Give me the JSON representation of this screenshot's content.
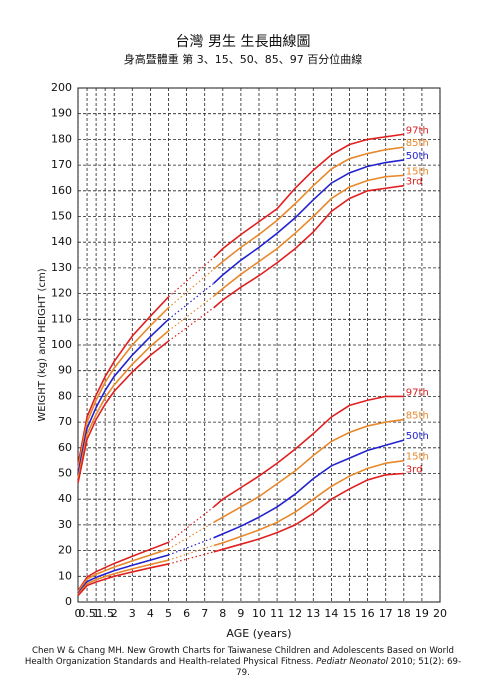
{
  "chart_data": {
    "type": "line",
    "title": "台灣 男生 生長曲線圖",
    "subtitle": "身高暨體重 第 3、15、50、85、97 百分位曲線",
    "x_label": "AGE (years)",
    "y_label": "WEIGHT (kg) and HEIGHT (cm)",
    "x": [
      0,
      0.5,
      1,
      1.5,
      2,
      3,
      4,
      5,
      7.5,
      8,
      9,
      10,
      11,
      12,
      13,
      14,
      15,
      16,
      17,
      18
    ],
    "dotted_between": [
      5,
      7.5
    ],
    "xlim": [
      0,
      20
    ],
    "xticks": [
      0,
      0.5,
      1,
      1.5,
      2,
      3,
      4,
      5,
      6,
      7,
      8,
      9,
      10,
      11,
      12,
      13,
      14,
      15,
      16,
      17,
      18,
      19,
      20
    ],
    "ylim": [
      0,
      200
    ],
    "yticks": [
      0,
      10,
      20,
      30,
      40,
      50,
      60,
      70,
      80,
      90,
      100,
      110,
      120,
      130,
      140,
      150,
      160,
      170,
      180,
      190,
      200
    ],
    "grid": true,
    "series": [
      {
        "name": "97th",
        "color": "#e02020",
        "values": [
          53.4,
          72,
          80.5,
          87.7,
          93.6,
          103.5,
          111.2,
          118.7,
          134,
          137.5,
          143,
          148,
          153,
          161,
          168,
          174,
          178,
          180,
          181,
          182
        ]
      },
      {
        "name": "85th",
        "color": "#e8882a",
        "values": [
          51.9,
          70,
          78.5,
          85.5,
          91,
          100,
          107.5,
          114.5,
          129.5,
          132.5,
          138,
          143,
          148.5,
          155,
          162,
          168.5,
          172.5,
          174.5,
          176,
          177
        ]
      },
      {
        "name": "50th",
        "color": "#2222d0",
        "values": [
          49.9,
          67.6,
          75.7,
          82.3,
          87.8,
          96.1,
          103.3,
          110,
          124,
          127.3,
          133,
          138,
          143.5,
          149.5,
          156.5,
          163,
          167,
          169.5,
          171,
          172
        ]
      },
      {
        "name": "15th",
        "color": "#e8882a",
        "values": [
          48,
          65.3,
          73,
          79.5,
          84.5,
          92.5,
          99.5,
          105.5,
          119,
          122,
          127.5,
          132.5,
          137.5,
          143.5,
          150,
          157,
          161.5,
          164,
          165.5,
          166
        ]
      },
      {
        "name": "3rd",
        "color": "#e02020",
        "values": [
          46.3,
          63.3,
          71,
          77,
          82,
          89.5,
          96,
          101.5,
          114.5,
          117.5,
          122.5,
          127,
          132,
          137.5,
          144,
          152,
          157,
          160,
          161,
          162
        ]
      },
      {
        "name": "97th",
        "color": "#e02020",
        "values": [
          4.3,
          9.7,
          11.8,
          13.4,
          15,
          17.8,
          20.5,
          23.2,
          37,
          40,
          44.5,
          49,
          54,
          59.5,
          65.5,
          72,
          76.5,
          78.5,
          80,
          80
        ]
      },
      {
        "name": "85th",
        "color": "#e8882a",
        "values": [
          3.9,
          8.9,
          10.8,
          12.2,
          13.6,
          16,
          18.3,
          20.6,
          31,
          33,
          37,
          41,
          46,
          51,
          57,
          62.5,
          66,
          68.5,
          70,
          71
        ]
      },
      {
        "name": "50th",
        "color": "#2222d0",
        "values": [
          3.3,
          7.9,
          9.6,
          10.9,
          12.2,
          14.3,
          16.3,
          18.3,
          25,
          26.5,
          29.5,
          33,
          37,
          42,
          48,
          53,
          56,
          59,
          61,
          63
        ]
      },
      {
        "name": "15th",
        "color": "#e8882a",
        "values": [
          2.9,
          7.1,
          8.7,
          9.9,
          11,
          12.9,
          14.6,
          16.3,
          22,
          23,
          25.5,
          28,
          31,
          35,
          40,
          45,
          49,
          52,
          54,
          55
        ]
      },
      {
        "name": "3rd",
        "color": "#e02020",
        "values": [
          2.5,
          6.4,
          7.8,
          8.9,
          10,
          11.7,
          13.3,
          14.8,
          19.5,
          20.5,
          22.5,
          24.5,
          27,
          30,
          34.5,
          40,
          44,
          47.5,
          49.5,
          50
        ]
      }
    ]
  },
  "source": {
    "text_before": "Chen W & Chang MH. New Growth Charts for Taiwanese Children and Adolescents Based on World Health Organization Standards and Health-related Physical Fitness.",
    "journal": "Pediatr Neonatol",
    "text_after": "2010; 51(2): 69-79."
  }
}
